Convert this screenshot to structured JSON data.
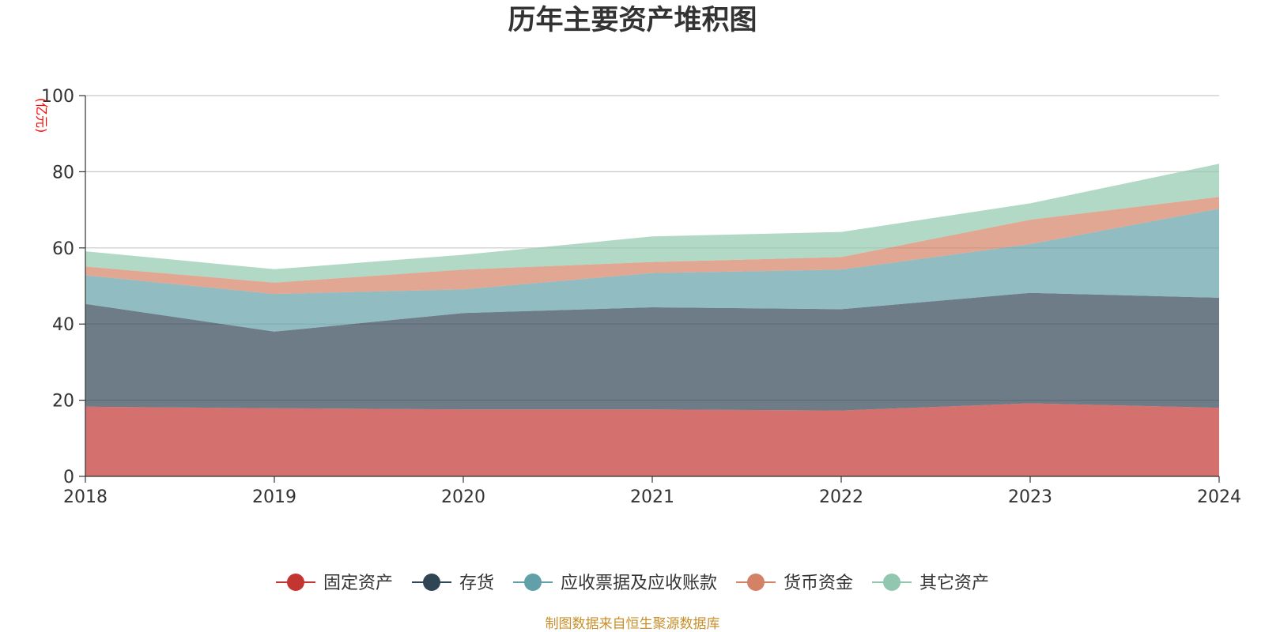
{
  "chart_data": {
    "type": "area",
    "stacked": true,
    "title": "历年主要资产堆积图",
    "ylabel": "(亿元)",
    "xlabel": "",
    "x": [
      "2018",
      "2019",
      "2020",
      "2021",
      "2022",
      "2023",
      "2024"
    ],
    "yticks": [
      "0",
      "20",
      "40",
      "60",
      "80",
      "100"
    ],
    "ylim": [
      0,
      100
    ],
    "grid": true,
    "legend_position": "bottom",
    "series": [
      {
        "name": "固定资产",
        "color": "#c23531",
        "values": [
          18.3,
          17.9,
          17.6,
          17.6,
          17.3,
          19.2,
          18.0
        ]
      },
      {
        "name": "存货",
        "color": "#2f4554",
        "values": [
          27.0,
          20.1,
          25.3,
          26.8,
          26.6,
          29.0,
          28.9
        ]
      },
      {
        "name": "应收票据及应收账款",
        "color": "#61a0a8",
        "values": [
          7.5,
          9.9,
          6.2,
          9.0,
          10.4,
          12.8,
          23.4
        ]
      },
      {
        "name": "货币资金",
        "color": "#d48265",
        "values": [
          2.3,
          3.0,
          5.2,
          2.9,
          3.3,
          6.4,
          3.1
        ]
      },
      {
        "name": "其它资产",
        "color": "#91c7ae",
        "values": [
          4.0,
          3.5,
          3.9,
          6.7,
          6.6,
          4.3,
          8.7
        ]
      }
    ]
  },
  "source": "制图数据来自恒生聚源数据库"
}
